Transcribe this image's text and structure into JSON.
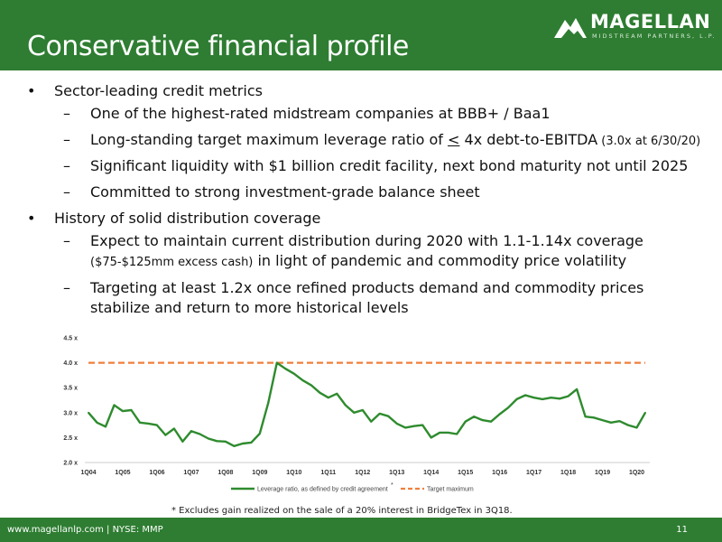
{
  "header": {
    "title": "Conservative financial profile",
    "logo_text": "MAGELLAN",
    "logo_sub": "MIDSTREAM PARTNERS, L.P.",
    "logo_mark": "mountain-logo-icon"
  },
  "bullets": [
    {
      "text": "Sector-leading credit metrics",
      "sub": [
        {
          "parts": [
            "One of the highest-rated midstream companies at BBB+ / Baa1"
          ]
        },
        {
          "parts": [
            "Long-standing target maximum leverage ratio of ",
            "<",
            " 4x debt-to-EBITDA",
            " (3.0x at 6/30/20)"
          ]
        },
        {
          "parts": [
            "Significant liquidity with $1 billion credit facility, next bond maturity not until 2025"
          ]
        },
        {
          "parts": [
            "Committed to strong investment-grade balance sheet"
          ]
        }
      ]
    },
    {
      "text": "History of solid distribution coverage",
      "sub": [
        {
          "parts": [
            "Expect to maintain current distribution during 2020 with 1.1-1.14x coverage",
            "($75-$125mm excess cash)",
            " in light of pandemic and commodity price volatility"
          ]
        },
        {
          "parts": [
            "Targeting at least 1.2x once refined products demand and commodity prices",
            "stabilize and return to more historical levels"
          ]
        }
      ]
    }
  ],
  "chart_data": {
    "type": "line",
    "title": "",
    "xlabel": "",
    "ylabel": "",
    "ylim": [
      2.0,
      4.5
    ],
    "y_ticks": [
      "2.0 x",
      "2.5 x",
      "3.0 x",
      "3.5 x",
      "4.0 x",
      "4.5 x"
    ],
    "x_tick_labels": [
      "1Q04",
      "1Q05",
      "1Q06",
      "1Q07",
      "1Q08",
      "1Q09",
      "1Q10",
      "1Q11",
      "1Q12",
      "1Q13",
      "1Q14",
      "1Q15",
      "1Q16",
      "1Q17",
      "1Q18",
      "1Q19",
      "1Q20"
    ],
    "series": [
      {
        "name": "Leverage ratio, as defined by credit agreement",
        "name_suffix": "*",
        "color": "#2e8b2e",
        "values": [
          3.0,
          2.8,
          2.72,
          3.15,
          3.03,
          3.05,
          2.8,
          2.78,
          2.75,
          2.55,
          2.68,
          2.42,
          2.63,
          2.57,
          2.48,
          2.43,
          2.42,
          2.33,
          2.38,
          2.4,
          2.58,
          3.2,
          4.0,
          3.88,
          3.78,
          3.65,
          3.55,
          3.4,
          3.3,
          3.38,
          3.15,
          3.0,
          3.05,
          2.82,
          2.98,
          2.93,
          2.78,
          2.7,
          2.73,
          2.75,
          2.5,
          2.6,
          2.6,
          2.57,
          2.82,
          2.92,
          2.85,
          2.82,
          2.97,
          3.1,
          3.27,
          3.35,
          3.3,
          3.27,
          3.3,
          3.28,
          3.33,
          3.47,
          2.92,
          2.9,
          2.85,
          2.8,
          2.83,
          2.75,
          2.7,
          3.0
        ]
      },
      {
        "name": "Target maximum",
        "color": "#f07f3c",
        "values": [
          4.0
        ]
      }
    ],
    "legend_position": "bottom",
    "grid": false
  },
  "footnote": "* Excludes gain realized on the sale of a 20% interest in BridgeTex in 3Q18.",
  "footer": {
    "left": "www.magellanlp.com | NYSE: MMP",
    "page": "11"
  }
}
